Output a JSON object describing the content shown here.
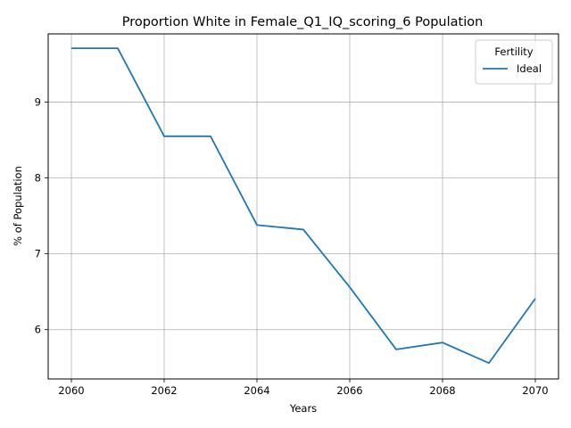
{
  "chart_data": {
    "type": "line",
    "title": "Proportion White in Female_Q1_IQ_scoring_6 Population",
    "xlabel": "Years",
    "ylabel": "% of Population",
    "xlim": [
      2059.5,
      2070.5
    ],
    "ylim": [
      5.35,
      9.9
    ],
    "xticks": [
      2060,
      2062,
      2064,
      2066,
      2068,
      2070
    ],
    "yticks": [
      6,
      7,
      8,
      9
    ],
    "grid": true,
    "legend": {
      "title": "Fertility",
      "placement": "top-right"
    },
    "series": [
      {
        "name": "Ideal",
        "color": "#1f77b4",
        "x": [
          2060,
          2061,
          2062,
          2063,
          2064,
          2065,
          2066,
          2067,
          2068,
          2069,
          2070
        ],
        "y": [
          9.71,
          9.71,
          8.55,
          8.55,
          7.38,
          7.32,
          6.56,
          5.74,
          5.83,
          5.56,
          6.41
        ]
      }
    ]
  }
}
